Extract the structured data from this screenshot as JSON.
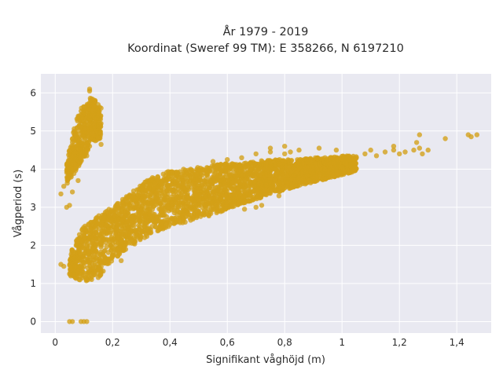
{
  "chart_data": {
    "type": "scatter",
    "title_line1": "År 1979 - 2019",
    "title_line2": "Koordinat (Sweref 99 TM): E 358266, N 6197210",
    "xlabel": "Signifikant våghöjd (m)",
    "ylabel": "Vågperiod (s)",
    "xlim": [
      -0.05,
      1.52
    ],
    "ylim": [
      -0.3,
      6.5
    ],
    "x_ticks": [
      0,
      0.2,
      0.4,
      0.6,
      0.8,
      1,
      1.2,
      1.4
    ],
    "x_tick_labels": [
      "0",
      "0,2",
      "0,4",
      "0,6",
      "0,8",
      "1",
      "1,2",
      "1,4"
    ],
    "y_ticks": [
      0,
      1,
      2,
      3,
      4,
      5,
      6
    ],
    "y_tick_labels": [
      "0",
      "1",
      "2",
      "3",
      "4",
      "5",
      "6"
    ],
    "grid": true,
    "legend": "none",
    "marker_color": "#D4A017",
    "plot_background": "#E9E9F1",
    "bands": [
      {
        "x": [
          0.05,
          0.1,
          0.15,
          0.2,
          0.25,
          0.3,
          0.35,
          0.4,
          0.45,
          0.5,
          0.55,
          0.6,
          0.65,
          0.7,
          0.75,
          0.8,
          0.85,
          0.9,
          0.95,
          1.0,
          1.05
        ],
        "y_low": [
          1.2,
          1.05,
          1.15,
          1.6,
          1.9,
          2.15,
          2.35,
          2.5,
          2.6,
          2.7,
          2.8,
          2.95,
          3.1,
          3.2,
          3.35,
          3.45,
          3.55,
          3.65,
          3.75,
          3.85,
          3.95
        ],
        "y_high": [
          1.8,
          2.5,
          2.8,
          3.0,
          3.3,
          3.6,
          3.85,
          3.95,
          4.0,
          4.05,
          4.1,
          4.15,
          4.15,
          4.2,
          4.25,
          4.25,
          4.25,
          4.3,
          4.3,
          4.35,
          4.35
        ]
      },
      {
        "x": [
          0.04,
          0.07,
          0.1,
          0.13,
          0.16
        ],
        "y_low": [
          3.6,
          3.9,
          4.3,
          4.7,
          4.8
        ],
        "y_high": [
          4.2,
          5.2,
          5.8,
          5.9,
          5.6
        ]
      }
    ],
    "points": [
      [
        0.02,
        1.5
      ],
      [
        0.03,
        1.45
      ],
      [
        0.05,
        1.25
      ],
      [
        0.07,
        1.15
      ],
      [
        0.17,
        1.6
      ],
      [
        0.2,
        1.75
      ],
      [
        0.23,
        1.6
      ],
      [
        0.02,
        3.35
      ],
      [
        0.03,
        3.55
      ],
      [
        0.04,
        3.0
      ],
      [
        0.05,
        3.05
      ],
      [
        0.06,
        3.4
      ],
      [
        0.07,
        4.1
      ],
      [
        0.08,
        4.8
      ],
      [
        0.06,
        4.55
      ],
      [
        0.09,
        4.4
      ],
      [
        0.12,
        5.3
      ],
      [
        0.14,
        5.55
      ],
      [
        0.16,
        5.6
      ],
      [
        0.12,
        6.1
      ],
      [
        0.12,
        6.05
      ],
      [
        0.1,
        5.5
      ],
      [
        0.15,
        5.1
      ],
      [
        0.13,
        4.9
      ],
      [
        0.16,
        4.65
      ],
      [
        0.08,
        3.7
      ],
      [
        0.11,
        4.35
      ],
      [
        0.05,
        0.0
      ],
      [
        0.06,
        0.0
      ],
      [
        0.09,
        0.0
      ],
      [
        0.1,
        0.0
      ],
      [
        0.11,
        0.0
      ],
      [
        0.55,
        3.0
      ],
      [
        0.6,
        3.1
      ],
      [
        0.65,
        3.15
      ],
      [
        0.66,
        2.95
      ],
      [
        0.7,
        3.0
      ],
      [
        0.72,
        3.05
      ],
      [
        0.78,
        3.3
      ],
      [
        0.55,
        4.2
      ],
      [
        0.6,
        4.25
      ],
      [
        0.65,
        4.3
      ],
      [
        0.7,
        4.4
      ],
      [
        0.75,
        4.45
      ],
      [
        0.8,
        4.4
      ],
      [
        0.85,
        4.5
      ],
      [
        0.85,
        4.1
      ],
      [
        0.9,
        4.1
      ],
      [
        0.95,
        4.15
      ],
      [
        1.0,
        4.05
      ],
      [
        1.02,
        4.3
      ],
      [
        1.05,
        4.3
      ],
      [
        1.08,
        4.4
      ],
      [
        1.1,
        4.5
      ],
      [
        1.12,
        4.35
      ],
      [
        1.15,
        4.45
      ],
      [
        1.18,
        4.5
      ],
      [
        1.2,
        4.4
      ],
      [
        1.22,
        4.45
      ],
      [
        1.25,
        4.5
      ],
      [
        1.27,
        4.55
      ],
      [
        1.28,
        4.4
      ],
      [
        1.3,
        4.5
      ],
      [
        1.18,
        4.6
      ],
      [
        1.26,
        4.7
      ],
      [
        1.27,
        4.9
      ],
      [
        1.36,
        4.8
      ],
      [
        1.44,
        4.9
      ],
      [
        1.45,
        4.85
      ],
      [
        1.47,
        4.9
      ],
      [
        0.75,
        4.55
      ],
      [
        0.8,
        4.6
      ],
      [
        0.82,
        4.45
      ],
      [
        0.92,
        4.55
      ],
      [
        0.98,
        4.5
      ]
    ]
  }
}
